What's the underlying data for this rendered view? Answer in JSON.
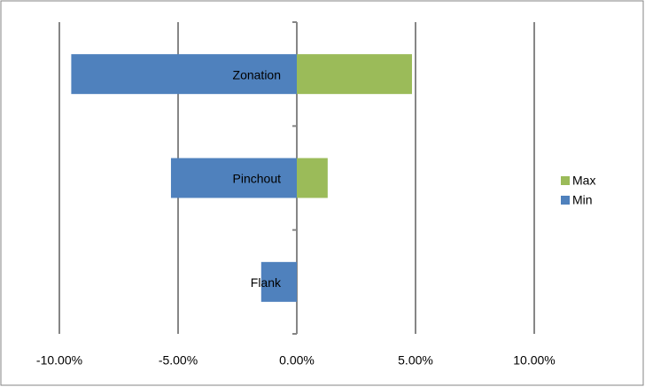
{
  "chart_data": {
    "type": "bar",
    "orientation": "horizontal",
    "categories": [
      "Zonation",
      "Pinchout",
      "Flank"
    ],
    "series": [
      {
        "name": "Max",
        "color": "#9bbb59",
        "values": [
          4.85,
          1.3,
          0
        ]
      },
      {
        "name": "Min",
        "color": "#4f81bd",
        "values": [
          -9.5,
          -5.3,
          -1.5
        ]
      }
    ],
    "xlim": [
      -10,
      10
    ],
    "xticks": [
      {
        "value": -10,
        "label": "-10.00%"
      },
      {
        "value": -5,
        "label": "-5.00%"
      },
      {
        "value": 0,
        "label": "0.00%"
      },
      {
        "value": 5,
        "label": "5.00%"
      },
      {
        "value": 10,
        "label": "10.00%"
      }
    ],
    "grid": true,
    "legend": "right"
  }
}
